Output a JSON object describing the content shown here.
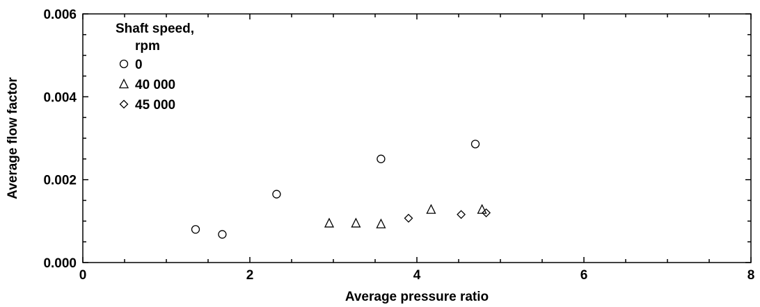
{
  "chart_data": {
    "type": "scatter",
    "xlabel": "Average pressure ratio",
    "ylabel": "Average flow factor",
    "xlim": [
      0,
      8
    ],
    "ylim": [
      0,
      0.006
    ],
    "x_ticks": [
      "0",
      "2",
      "4",
      "6",
      "8"
    ],
    "y_ticks": [
      "0.000",
      "0.002",
      "0.004",
      "0.006"
    ],
    "grid": false,
    "legend": {
      "title_line1": "Shaft speed,",
      "title_line2": "rpm",
      "placement": "top-left"
    },
    "series": [
      {
        "name": "0",
        "marker": "circle",
        "points": [
          {
            "x": 1.35,
            "y": 0.0008
          },
          {
            "x": 1.67,
            "y": 0.00068
          },
          {
            "x": 2.32,
            "y": 0.00165
          },
          {
            "x": 3.57,
            "y": 0.0025
          },
          {
            "x": 4.7,
            "y": 0.00286
          }
        ]
      },
      {
        "name": "40 000",
        "marker": "triangle",
        "points": [
          {
            "x": 2.95,
            "y": 0.00095
          },
          {
            "x": 3.27,
            "y": 0.00095
          },
          {
            "x": 3.57,
            "y": 0.00093
          },
          {
            "x": 4.17,
            "y": 0.00128
          },
          {
            "x": 4.78,
            "y": 0.00128
          }
        ]
      },
      {
        "name": "45 000",
        "marker": "diamond",
        "points": [
          {
            "x": 3.9,
            "y": 0.00107
          },
          {
            "x": 4.53,
            "y": 0.00116
          },
          {
            "x": 4.83,
            "y": 0.0012
          }
        ]
      }
    ]
  }
}
